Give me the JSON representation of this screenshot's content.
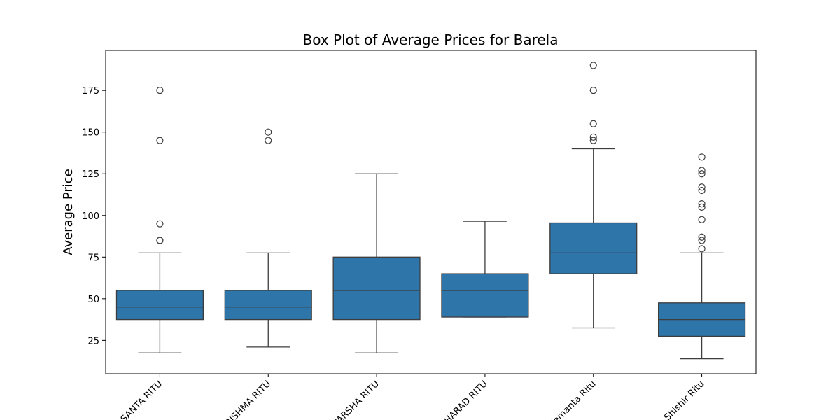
{
  "chart_data": {
    "type": "box",
    "title": "Box Plot of Average Prices for Barela",
    "xlabel": "",
    "ylabel": "Average Price",
    "ylim": [
      5,
      199
    ],
    "yticks": [
      25,
      50,
      75,
      100,
      125,
      150,
      175
    ],
    "box_color": "#2e75aa",
    "grid": false,
    "categories": [
      "VASANTA RITU",
      "GRISHMA RITU",
      "VARSHA RITU",
      "SHARAD RITU",
      "Hemanta Ritu",
      "Shishir Ritu"
    ],
    "boxes": [
      {
        "whislo": 17.5,
        "q1": 37.5,
        "med": 45,
        "q3": 55,
        "whishi": 77.5,
        "fliers": [
          85,
          85,
          95,
          145,
          175
        ]
      },
      {
        "whislo": 21,
        "q1": 37.5,
        "med": 45,
        "q3": 55,
        "whishi": 77.5,
        "fliers": [
          145,
          150
        ]
      },
      {
        "whislo": 17.5,
        "q1": 37.5,
        "med": 55,
        "q3": 75,
        "whishi": 125,
        "fliers": []
      },
      {
        "whislo": 39,
        "q1": 39,
        "med": 55,
        "q3": 65,
        "whishi": 96.5,
        "fliers": []
      },
      {
        "whislo": 32.5,
        "q1": 65,
        "med": 77.5,
        "q3": 95.5,
        "whishi": 140,
        "fliers": [
          145,
          147,
          155,
          175,
          190
        ]
      },
      {
        "whislo": 14,
        "q1": 27.5,
        "med": 37.5,
        "q3": 47.5,
        "whishi": 77.5,
        "fliers": [
          80,
          85,
          87,
          97.5,
          105,
          107,
          115,
          117,
          125,
          127,
          135
        ]
      }
    ]
  }
}
